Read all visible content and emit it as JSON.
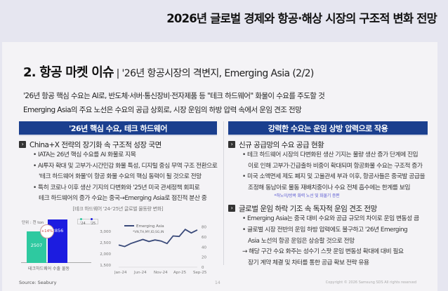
{
  "top_title": "2026년 글로벌 경제와 항공·해상 시장의 구조적 변화 전망",
  "slide": {
    "heading": "2. 항공 마켓 이슈",
    "heading_sub": " | '26년 항공시장의 격변지, Emerging Asia (2/2)",
    "summary": [
      "'26년 항공 핵심 수요는 AI로, 반도체·서버·통신장비·전자제품 등 \"테크 하드웨어\" 화물이 수요를 주도할 것",
      "Emerging Asia의 주요 노선은 수요의 공급 상회로, 시장 운임의 하방 압력 속에서 운임 견조 전망"
    ],
    "left": {
      "band": "'26년 핵심 수요, 테크 하드웨어",
      "section_title": "China+X 전략의 장기화 속 구조적 성장 국면",
      "bullets": [
        {
          "type": "bullet",
          "text": "• IATA는 26년 핵심 수요를 AI 화물로 지목"
        },
        {
          "type": "bullet",
          "text": "• AI투자 확대 및 고부가·시간민감 화물 특성, 디지털 중심 무역 구조 전환으로"
        },
        {
          "type": "cont",
          "text": "'테크 하드웨어 화물'이 항공 화물 수요의 핵심 동력이 될 것으로 전망"
        },
        {
          "type": "bullet",
          "text": "• 특히 코로나 이후 생산 기지의 다변화와 '25년 미국 관세정책 회피로"
        },
        {
          "type": "cont",
          "text": "테크 하드웨어의 증가 수요는 중국→Emerging Asia로 점진적 분산 중"
        }
      ],
      "figure_caption": "[테크 하드웨어 '24-'25년 글로벌 물동량 변화]"
    },
    "right": {
      "band": "강력한 수요는 운임 상방 압력으로 작용",
      "section1_title": "신규 공급망의 수요 공급 현황",
      "section1_bullets": [
        {
          "type": "bullet",
          "text": "• 테크 하드웨어 시장의 다변화된 생산 기지는 물량 생산 증가 단계에 진입"
        },
        {
          "type": "cont",
          "text": "이로 인해 고부가·긴급출하 비중이 확대되며 항공화물 수요는 구조적 증가"
        },
        {
          "type": "bullet",
          "text": "• 미국 소액면세 제도 폐지 및 고율관세 부과 이후, 항공사들은 중국발 공급을"
        },
        {
          "type": "cont",
          "text": "조정해 동남아로 물동 재배치중이나 수요 전체 흡수에는 한계를 보임"
        }
      ],
      "section1_note": "*하노이/방콕 화력 노선 및 화물기 증편",
      "section2_title": "글로벌 운임 하락 기조 속 독자적 운임 견조 전망",
      "section2_bullets": [
        {
          "type": "bullet",
          "text": "• Emerging Asia는 중국 대비 수요와 공급 규모의 차이로 운임 변동성 큼"
        },
        {
          "type": "bullet",
          "text": "• 글로벌 시장 전반의 운임 하방 압력에도 불구하고 '26년 Emerging"
        },
        {
          "type": "cont",
          "text": "Asia 노선의 항공 운임은 상승할 것으로 전망"
        },
        {
          "type": "arrow",
          "text": "→ 해당 구간 수요 화주는 성수기 스팟 운임 변동성 확대에 대비 필요"
        },
        {
          "type": "cont",
          "text": "장기 계약 체결 및 차터를 통한 공급 확보 전략 유용"
        }
      ]
    },
    "source": "Source: Seabury",
    "page_number": "14",
    "copyright": "Copyright © 2026 Samsung SDS All rights reserved"
  },
  "chart_data": [
    {
      "type": "bar",
      "title": "테크하드웨어 수출 물동",
      "unit": "단위 : 천 ton",
      "categories": [
        "'24",
        "'25"
      ],
      "values": [
        2507,
        2856
      ],
      "annotation": "+14%",
      "ylim": [
        1500,
        3000
      ],
      "yticks": [
        "3,000",
        "2,500",
        "2,000",
        "1,500"
      ],
      "colors": {
        "'24": "#2ec9a0",
        "'25": "#1c1ce0"
      }
    },
    {
      "type": "line",
      "series": [
        {
          "name": "Emerging Asia",
          "note": "*VN,TH,MY,ID,SG,IN",
          "color": "#3a4a7a"
        }
      ],
      "x": [
        "Jan-24",
        "Mar-24",
        "Apr-24",
        "Jun-24",
        "Jul-24",
        "Sep-24",
        "Nov-24",
        "Jan-25",
        "Feb-25",
        "Apr-25",
        "May-25",
        "Jul-25",
        "Aug-25",
        "Sep-25"
      ],
      "values": [
        44,
        41,
        47,
        51,
        55,
        51,
        54,
        52,
        47,
        62,
        61,
        75,
        68,
        74
      ],
      "xticks": [
        "Jan-24",
        "Jun-24",
        "Nov-24",
        "Apr-25",
        "Sep-25"
      ],
      "yticks": [
        0,
        20,
        40,
        60,
        80
      ],
      "ylim": [
        0,
        85
      ]
    }
  ]
}
